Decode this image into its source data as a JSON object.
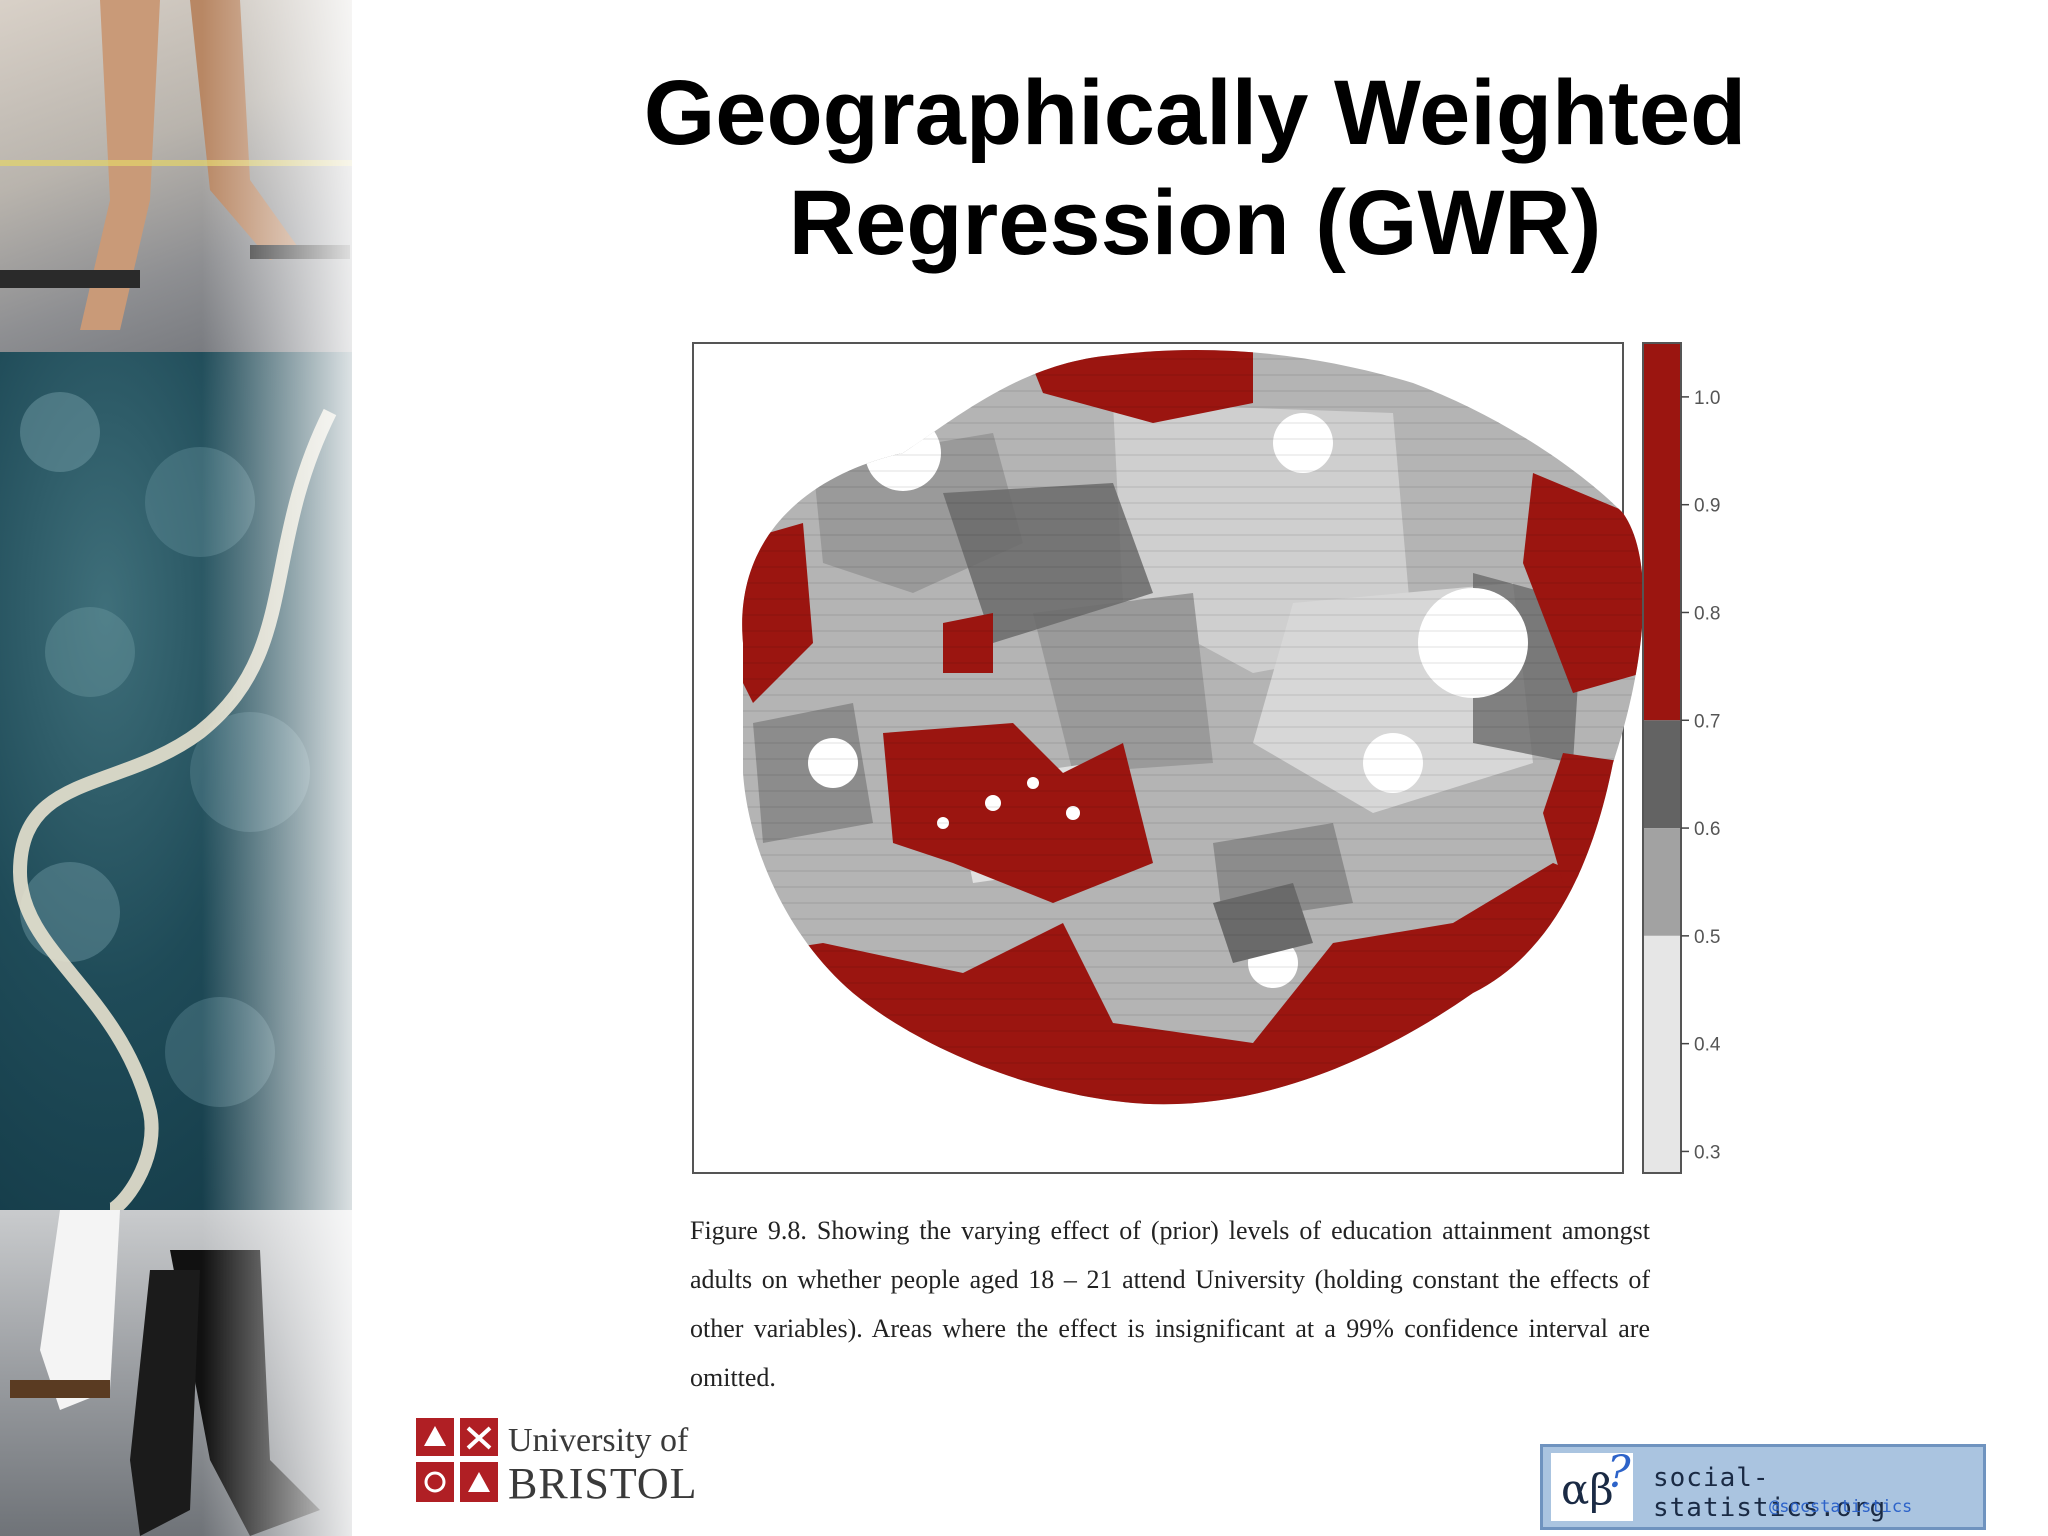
{
  "slide": {
    "title_line1": "Geographically Weighted",
    "title_line2": "Regression (GWR)"
  },
  "figure": {
    "legend_ticks": [
      "1.0",
      "0.9",
      "0.8",
      "0.7",
      "0.6",
      "0.5",
      "0.4",
      "0.3"
    ],
    "legend_bins": [
      {
        "from": 0.7,
        "to": 1.05,
        "color": "#9b1510"
      },
      {
        "from": 0.6,
        "to": 0.7,
        "color": "#636363"
      },
      {
        "from": 0.5,
        "to": 0.6,
        "color": "#a2a2a2"
      },
      {
        "from": 0.28,
        "to": 0.5,
        "color": "#e6e6e6"
      }
    ],
    "caption": "Figure 9.8. Showing the varying effect of (prior) levels of education attainment amongst adults on whether people aged 18 – 21 attend University (holding constant the effects of other variables). Areas where the effect is insignificant at a 99% confidence interval are omitted."
  },
  "logos": {
    "bristol_line1": "University of",
    "bristol_line2": "BRISTOL",
    "ss_symbol": "αβ",
    "ss_question": "?",
    "ss_site": "social-statistics.org",
    "ss_handle": "@socstatistics"
  },
  "colors": {
    "significant_high": "#9b1510",
    "mid_dark": "#636363",
    "mid_light": "#a2a2a2",
    "low": "#e6e6e6"
  }
}
